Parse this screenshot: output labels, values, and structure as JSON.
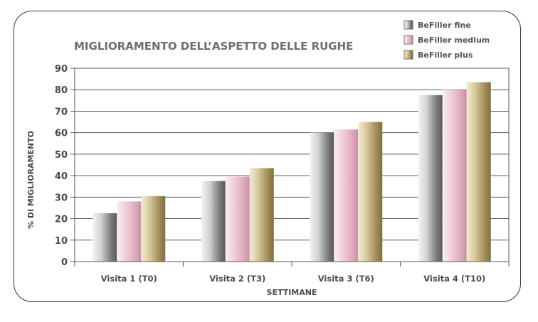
{
  "chart_data": {
    "type": "bar",
    "title": "MIGLIORAMENTO DELL’ASPETTO DELLE RUGHE",
    "xlabel": "SETTIMANE",
    "ylabel": "% DI MIGLIORAMENTO",
    "ylim": [
      0,
      90
    ],
    "yticks": [
      0,
      10,
      20,
      30,
      40,
      50,
      60,
      70,
      80,
      90
    ],
    "grid": true,
    "legend_position": "top-right",
    "categories": [
      "Visita 1 (T0)",
      "Visita 2 (T3)",
      "Visita 3 (T6)",
      "Visita 4 (T10)"
    ],
    "series": [
      {
        "name": "BeFiller fine",
        "values": [
          22.5,
          37.5,
          60,
          77.5
        ],
        "color": "#9a9a9c"
      },
      {
        "name": "BeFiller medium",
        "values": [
          28,
          39.5,
          61.5,
          80
        ],
        "color": "#e3b3c3"
      },
      {
        "name": "BeFiller plus",
        "values": [
          30.5,
          43.5,
          65,
          83.5
        ],
        "color": "#b29f6c"
      }
    ]
  }
}
